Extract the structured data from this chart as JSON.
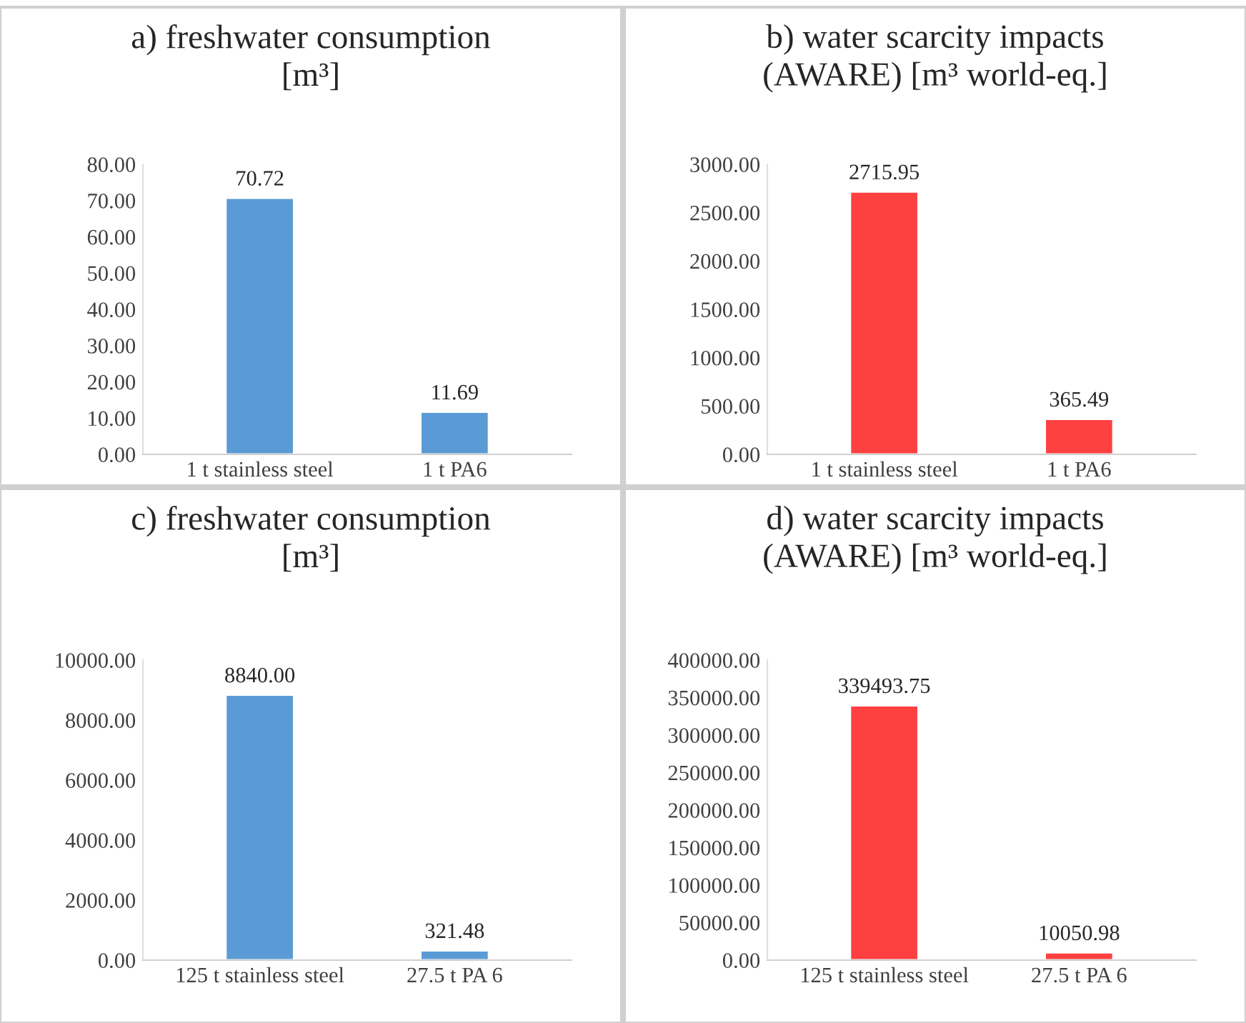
{
  "chart_data": [
    {
      "type": "bar",
      "title": "a) freshwater consumption\n[m³]",
      "categories": [
        "1 t stainless steel",
        "1 t PA6"
      ],
      "values": [
        70.72,
        11.69
      ],
      "value_labels": [
        "70.72",
        "11.69"
      ],
      "color": "#5b9bd5",
      "ylim": [
        0,
        80
      ],
      "yticks": [
        {
          "value": 0,
          "label": "0.00"
        },
        {
          "value": 10,
          "label": "10.00"
        },
        {
          "value": 20,
          "label": "20.00"
        },
        {
          "value": 30,
          "label": "30.00"
        },
        {
          "value": 40,
          "label": "40.00"
        },
        {
          "value": 50,
          "label": "50.00"
        },
        {
          "value": 60,
          "label": "60.00"
        },
        {
          "value": 70,
          "label": "70.00"
        },
        {
          "value": 80,
          "label": "80.00"
        }
      ]
    },
    {
      "type": "bar",
      "title": "b) water scarcity impacts\n(AWARE) [m³ world-eq.]",
      "categories": [
        "1 t stainless steel",
        "1 t PA6"
      ],
      "values": [
        2715.95,
        365.49
      ],
      "value_labels": [
        "2715.95",
        "365.49"
      ],
      "color": "#ff4040",
      "ylim": [
        0,
        3000
      ],
      "yticks": [
        {
          "value": 0,
          "label": "0.00"
        },
        {
          "value": 500,
          "label": "500.00"
        },
        {
          "value": 1000,
          "label": "1000.00"
        },
        {
          "value": 1500,
          "label": "1500.00"
        },
        {
          "value": 2000,
          "label": "2000.00"
        },
        {
          "value": 2500,
          "label": "2500.00"
        },
        {
          "value": 3000,
          "label": "3000.00"
        }
      ]
    },
    {
      "type": "bar",
      "title": "c) freshwater consumption\n[m³]",
      "categories": [
        "125 t stainless steel",
        "27.5 t PA 6"
      ],
      "values": [
        8840.0,
        321.48
      ],
      "value_labels": [
        "8840.00",
        "321.48"
      ],
      "color": "#5b9bd5",
      "ylim": [
        0,
        10000
      ],
      "yticks": [
        {
          "value": 0,
          "label": "0.00"
        },
        {
          "value": 2000,
          "label": "2000.00"
        },
        {
          "value": 4000,
          "label": "4000.00"
        },
        {
          "value": 6000,
          "label": "6000.00"
        },
        {
          "value": 8000,
          "label": "8000.00"
        },
        {
          "value": 10000,
          "label": "10000.00"
        }
      ]
    },
    {
      "type": "bar",
      "title": "d) water scarcity impacts\n(AWARE) [m³ world-eq.]",
      "categories": [
        "125 t stainless steel",
        "27.5 t PA 6"
      ],
      "values": [
        339493.75,
        10050.98
      ],
      "value_labels": [
        "339493.75",
        "10050.98"
      ],
      "color": "#ff4040",
      "ylim": [
        0,
        400000
      ],
      "yticks": [
        {
          "value": 0,
          "label": "0.00"
        },
        {
          "value": 50000,
          "label": "50000.00"
        },
        {
          "value": 100000,
          "label": "100000.00"
        },
        {
          "value": 150000,
          "label": "150000.00"
        },
        {
          "value": 200000,
          "label": "200000.00"
        },
        {
          "value": 250000,
          "label": "250000.00"
        },
        {
          "value": 300000,
          "label": "300000.00"
        },
        {
          "value": 350000,
          "label": "350000.00"
        },
        {
          "value": 400000,
          "label": "400000.00"
        }
      ]
    }
  ]
}
